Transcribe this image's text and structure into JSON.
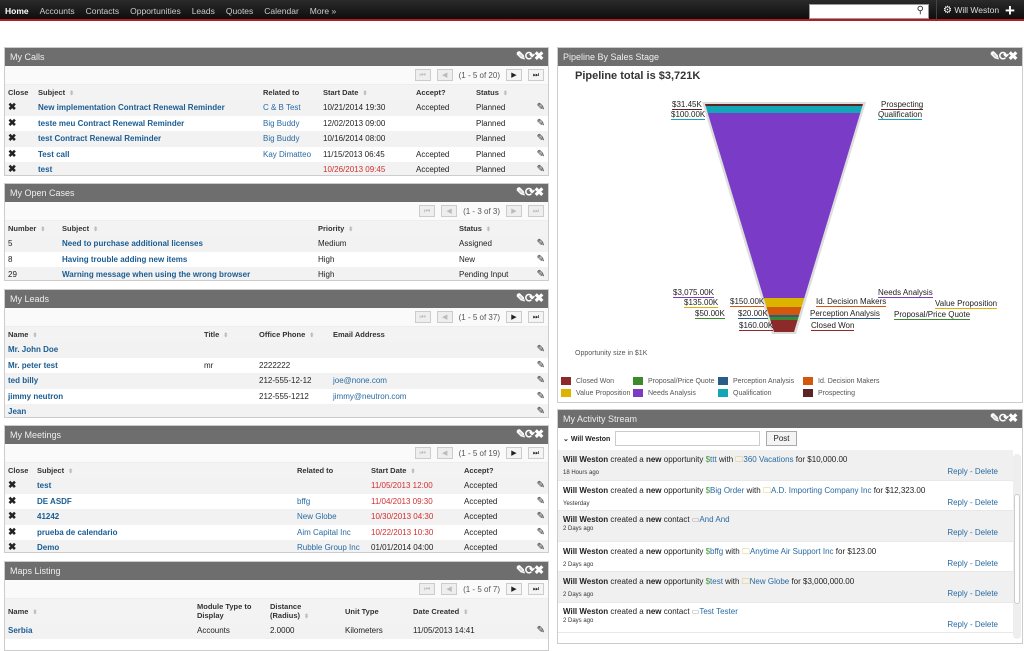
{
  "nav": {
    "items": [
      "Home",
      "Accounts",
      "Contacts",
      "Opportunities",
      "Leads",
      "Quotes",
      "Calendar",
      "More »"
    ],
    "search_placeholder": "",
    "user": "Will Weston"
  },
  "calls": {
    "title": "My Calls",
    "pager": "(1 - 5 of 20)",
    "headers": [
      "Close",
      "Subject",
      "Related to",
      "Start Date",
      "Accept?",
      "Status"
    ],
    "rows": [
      {
        "subject": "New implementation Contract Renewal Reminder",
        "related": "C & B Test",
        "date": "10/21/2014 19:30",
        "overdue": false,
        "accept": "Accepted",
        "status": "Planned"
      },
      {
        "subject": "teste meu Contract Renewal Reminder",
        "related": "Big Buddy",
        "date": "12/02/2013 09:00",
        "overdue": false,
        "accept": "",
        "status": "Planned"
      },
      {
        "subject": "test Contract Renewal Reminder",
        "related": "Big Buddy",
        "date": "10/16/2014 08:00",
        "overdue": false,
        "accept": "",
        "status": "Planned"
      },
      {
        "subject": "Test call",
        "related": "Kay Dimatteo",
        "date": "11/15/2013 06:45",
        "overdue": false,
        "accept": "Accepted",
        "status": "Planned"
      },
      {
        "subject": "test",
        "related": "",
        "date": "10/26/2013 09:45",
        "overdue": true,
        "accept": "Accepted",
        "status": "Planned"
      }
    ]
  },
  "cases": {
    "title": "My Open Cases",
    "pager": "(1 - 3 of 3)",
    "headers": [
      "Number",
      "Subject",
      "Priority",
      "Status"
    ],
    "rows": [
      {
        "number": "5",
        "subject": "Need to purchase additional licenses",
        "priority": "Medium",
        "status": "Assigned"
      },
      {
        "number": "8",
        "subject": "Having trouble adding new items",
        "priority": "High",
        "status": "New"
      },
      {
        "number": "29",
        "subject": "Warning message when using the wrong browser",
        "priority": "High",
        "status": "Pending Input"
      }
    ]
  },
  "leads": {
    "title": "My Leads",
    "pager": "(1 - 5 of 37)",
    "headers": [
      "Name",
      "Title",
      "Office Phone",
      "Email Address"
    ],
    "rows": [
      {
        "name": "Mr. John Doe",
        "title": "",
        "phone": "",
        "email": ""
      },
      {
        "name": "Mr. peter test",
        "title": "mr",
        "phone": "2222222",
        "email": ""
      },
      {
        "name": "ted billy",
        "title": "",
        "phone": "212-555-12-12",
        "email": "joe@none.com"
      },
      {
        "name": "jimmy neutron",
        "title": "",
        "phone": "212-555-1212",
        "email": "jimmy@neutron.com"
      },
      {
        "name": "Jean",
        "title": "",
        "phone": "",
        "email": ""
      }
    ]
  },
  "meetings": {
    "title": "My Meetings",
    "pager": "(1 - 5 of 19)",
    "headers": [
      "Close",
      "Subject",
      "Related to",
      "Start Date",
      "Accept?"
    ],
    "rows": [
      {
        "subject": "test",
        "related": "",
        "date": "11/05/2013 12:00",
        "overdue": true,
        "accept": "Accepted"
      },
      {
        "subject": "DE ASDF",
        "related": "bffg",
        "date": "11/04/2013 09:30",
        "overdue": true,
        "accept": "Accepted"
      },
      {
        "subject": "41242",
        "related": "New Globe",
        "date": "10/30/2013 04:30",
        "overdue": true,
        "accept": "Accepted"
      },
      {
        "subject": "prueba de calendario",
        "related": "Aim Capital Inc",
        "date": "10/22/2013 10:30",
        "overdue": true,
        "accept": "Accepted"
      },
      {
        "subject": "Demo",
        "related": "Rubble Group Inc",
        "date": "01/01/2014 04:00",
        "overdue": false,
        "accept": "Accepted"
      }
    ]
  },
  "maps": {
    "title": "Maps Listing",
    "pager": "(1 - 5 of 7)",
    "headers": [
      "Name",
      "Module Type to Display",
      "Distance (Radius)",
      "Unit Type",
      "Date Created"
    ],
    "rows": [
      {
        "name": "Serbia",
        "module": "Accounts",
        "distance": "2.0000",
        "unit": "Kilometers",
        "date": "11/05/2013 14:41"
      }
    ]
  },
  "pipeline": {
    "title": "Pipeline By Sales Stage",
    "heading": "Pipeline total is $3,721K",
    "note": "Opportunity size in $1K",
    "chart_data": {
      "type": "funnel",
      "unit": "$K",
      "stages": [
        {
          "name": "Prospecting",
          "value_label": "$31.45K",
          "value": 31.45,
          "color": "#5a2424"
        },
        {
          "name": "Qualification",
          "value_label": "$100.00K",
          "value": 100,
          "color": "#12a6b6"
        },
        {
          "name": "Needs Analysis",
          "value_label": "$3,075.00K",
          "value": 3075,
          "color": "#7a3cc6"
        },
        {
          "name": "Value Proposition",
          "value_label": "$135.00K",
          "value": 135,
          "color": "#dcb400"
        },
        {
          "name": "Id. Decision Makers",
          "value_label": "$150.00K",
          "value": 150,
          "color": "#d2580e"
        },
        {
          "name": "Perception Analysis",
          "value_label": "$20.00K",
          "value": 20,
          "color": "#2a5c88"
        },
        {
          "name": "Proposal/Price Quote",
          "value_label": "$50.00K",
          "value": 50,
          "color": "#3c8a2c"
        },
        {
          "name": "Closed Won",
          "value_label": "$160.00K",
          "value": 160,
          "color": "#8c2a2a"
        }
      ]
    },
    "legend": [
      {
        "name": "Closed Won",
        "color": "#8c2a2a"
      },
      {
        "name": "Proposal/Price Quote",
        "color": "#3c8a2c"
      },
      {
        "name": "Perception Analysis",
        "color": "#2a5c88"
      },
      {
        "name": "Id. Decision Makers",
        "color": "#d2580e"
      },
      {
        "name": "Value Proposition",
        "color": "#dcb400"
      },
      {
        "name": "Needs Analysis",
        "color": "#7a3cc6"
      },
      {
        "name": "Qualification",
        "color": "#12a6b6"
      },
      {
        "name": "Prospecting",
        "color": "#5a2424"
      }
    ]
  },
  "activity": {
    "title": "My Activity Stream",
    "user_filter": "Will Weston",
    "post_label": "Post",
    "reply": "Reply",
    "delete": "Delete",
    "items": [
      {
        "user": "Will Weston",
        "verb": "created a",
        "new": "new",
        "type": "opportunity",
        "target": "ttt",
        "with": "with",
        "account": "360 Vacations",
        "amount": "for $10,000.00",
        "when": "18 Hours ago"
      },
      {
        "user": "Will Weston",
        "verb": "created a",
        "new": "new",
        "type": "opportunity",
        "target": "Big Order",
        "with": "with",
        "account": "A.D. Importing Company Inc",
        "amount": "for $12,323.00",
        "when": "Yesterday"
      },
      {
        "user": "Will Weston",
        "verb": "created a",
        "new": "new",
        "type": "contact",
        "target": "And And",
        "with": "",
        "account": "",
        "amount": "",
        "when": "2 Days ago"
      },
      {
        "user": "Will Weston",
        "verb": "created a",
        "new": "new",
        "type": "opportunity",
        "target": "bffg",
        "with": "with",
        "account": "Anytime Air Support Inc",
        "amount": "for $123.00",
        "when": "2 Days ago"
      },
      {
        "user": "Will Weston",
        "verb": "created a",
        "new": "new",
        "type": "opportunity",
        "target": "test",
        "with": "with",
        "account": "New Globe",
        "amount": "for $3,000,000.00",
        "when": "2 Days ago"
      },
      {
        "user": "Will Weston",
        "verb": "created a",
        "new": "new",
        "type": "contact",
        "target": "Test Tester",
        "with": "",
        "account": "",
        "amount": "",
        "when": "2 Days ago"
      }
    ]
  }
}
